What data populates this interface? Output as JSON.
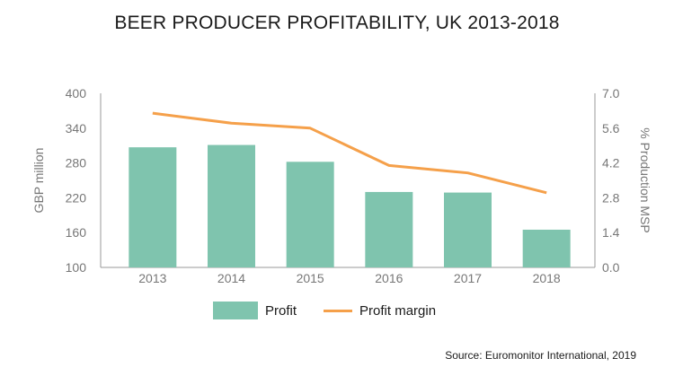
{
  "chart_data": {
    "type": "bar",
    "title": "BEER PRODUCER PROFITABILITY, UK 2013-2018",
    "categories": [
      "2013",
      "2014",
      "2015",
      "2016",
      "2017",
      "2018"
    ],
    "series": [
      {
        "name": "Profit",
        "kind": "bar",
        "axis": "left",
        "color": "#7fc4ae",
        "values": [
          307,
          311,
          282,
          230,
          229,
          165
        ]
      },
      {
        "name": "Profit margin",
        "kind": "line",
        "axis": "right",
        "color": "#f5a04a",
        "values": [
          6.2,
          5.8,
          5.6,
          4.1,
          3.8,
          3.0
        ]
      }
    ],
    "ylabel": "GBP million",
    "ylim": [
      100,
      400
    ],
    "yticks": [
      "400",
      "340",
      "280",
      "220",
      "160",
      "100"
    ],
    "y2label": "% Production MSP",
    "y2lim": [
      0.0,
      7.0
    ],
    "y2ticks": [
      "7.0",
      "5.6",
      "4.2",
      "2.8",
      "1.4",
      "0.0"
    ],
    "grid": false,
    "legend_position": "bottom",
    "source": "Source: Euromonitor International, 2019"
  }
}
